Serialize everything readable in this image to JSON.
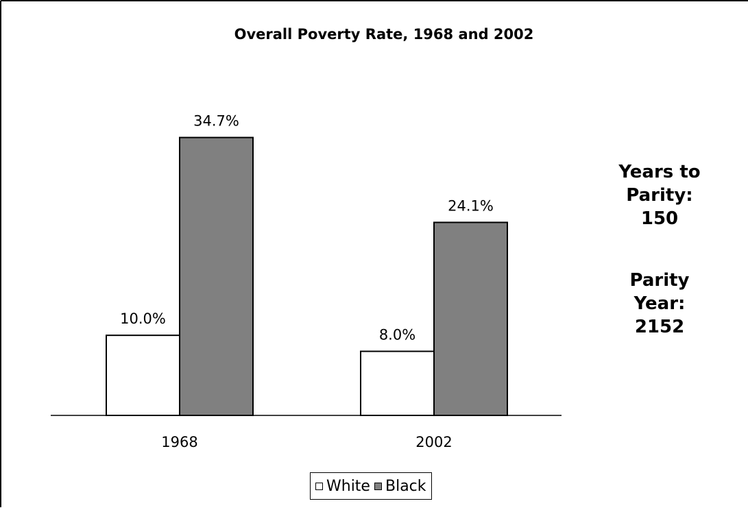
{
  "chart_data": {
    "type": "bar",
    "title": "Overall Poverty Rate, 1968 and 2002",
    "categories": [
      "1968",
      "2002"
    ],
    "series": [
      {
        "name": "White",
        "values": [
          10.0,
          8.0
        ],
        "labels": [
          "10.0%",
          "8.0%"
        ],
        "color": "#ffffff"
      },
      {
        "name": "Black",
        "values": [
          34.7,
          24.1
        ],
        "labels": [
          "34.7%",
          "24.1%"
        ],
        "color": "#808080"
      }
    ],
    "ylim": [
      0,
      36
    ],
    "grid": false,
    "legend_position": "bottom"
  },
  "annotations": {
    "years_to_parity_label_1": "Years to",
    "years_to_parity_label_2": "Parity:",
    "years_to_parity_value": "150",
    "parity_year_label_1": "Parity",
    "parity_year_label_2": "Year:",
    "parity_year_value": "2152"
  }
}
